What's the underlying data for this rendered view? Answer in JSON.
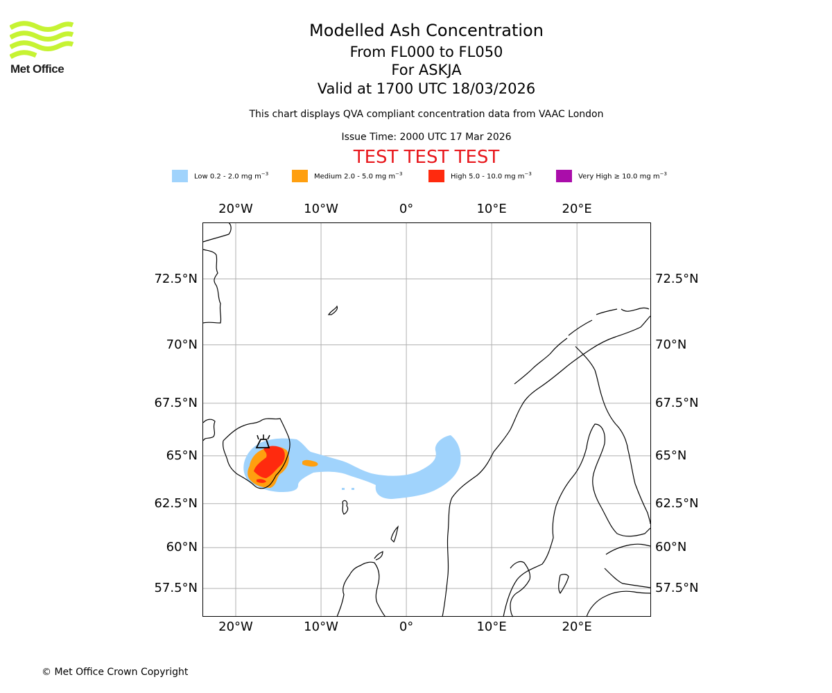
{
  "header": {
    "logo_text": "Met Office",
    "title": "Modelled Ash Concentration",
    "flight_levels": "From FL000 to FL050",
    "volcano": "For ASKJA",
    "valid_time": "Valid at 1700 UTC 18/03/2026",
    "compliance_note": "This chart displays QVA compliant concentration data from VAAC London",
    "issue_time": "Issue Time: 2000 UTC 17 Mar 2026",
    "test_banner": "TEST TEST TEST"
  },
  "legend": [
    {
      "label": "Low 0.2 - 2.0 mg m",
      "unit_exp": "−3",
      "color": "#a0d3fc"
    },
    {
      "label": "Medium 2.0 - 5.0 mg m",
      "unit_exp": "−3",
      "color": "#ff9f0f"
    },
    {
      "label": "High 5.0 - 10.0 mg m",
      "unit_exp": "−3",
      "color": "#ff2a0e"
    },
    {
      "label": "Very High  ≥  10.0 mg m",
      "unit_exp": "−3",
      "color": "#aa0daa"
    }
  ],
  "map": {
    "lon_labels": [
      "20°W",
      "10°W",
      "0°",
      "10°E",
      "20°E"
    ],
    "lon_values": [
      -20,
      -10,
      0,
      10,
      20
    ],
    "lat_labels": [
      "72.5°N",
      "70°N",
      "67.5°N",
      "65°N",
      "62.5°N",
      "60°N",
      "57.5°N"
    ],
    "lat_values": [
      72.5,
      70,
      67.5,
      65,
      62.5,
      60,
      57.5
    ],
    "extent": {
      "lon_min": -23.9,
      "lon_max": 28.6,
      "lat_min": 55.7,
      "lat_max": 74.4
    },
    "volcano_location": {
      "name": "ASKJA",
      "lon": -16.8,
      "lat": 65.0
    },
    "colors": {
      "grid": "#b0b0b0",
      "coast": "#000000",
      "frame": "#000000"
    }
  },
  "footer": {
    "copyright": "© Met Office Crown Copyright"
  }
}
